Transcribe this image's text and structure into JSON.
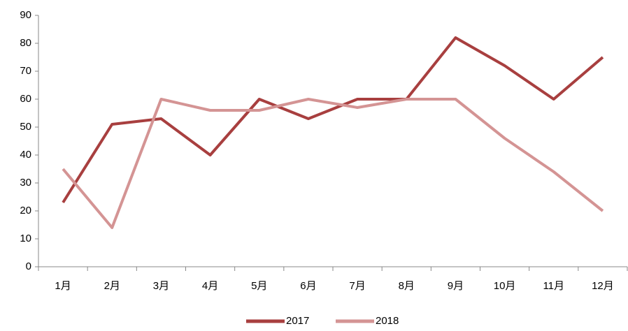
{
  "chart_data": {
    "type": "line",
    "categories": [
      "1月",
      "2月",
      "3月",
      "4月",
      "5月",
      "6月",
      "7月",
      "8月",
      "9月",
      "10月",
      "11月",
      "12月"
    ],
    "series": [
      {
        "name": "2017",
        "color": "#a83f3f",
        "values": [
          23,
          51,
          53,
          40,
          60,
          53,
          60,
          60,
          82,
          72,
          60,
          75
        ]
      },
      {
        "name": "2018",
        "color": "#d49494",
        "values": [
          35,
          14,
          60,
          56,
          56,
          60,
          57,
          60,
          60,
          46,
          34,
          20
        ]
      }
    ],
    "ylim": [
      0,
      90
    ],
    "yticks": [
      0,
      10,
      20,
      30,
      40,
      50,
      60,
      70,
      80,
      90
    ],
    "legend": "bottom"
  }
}
